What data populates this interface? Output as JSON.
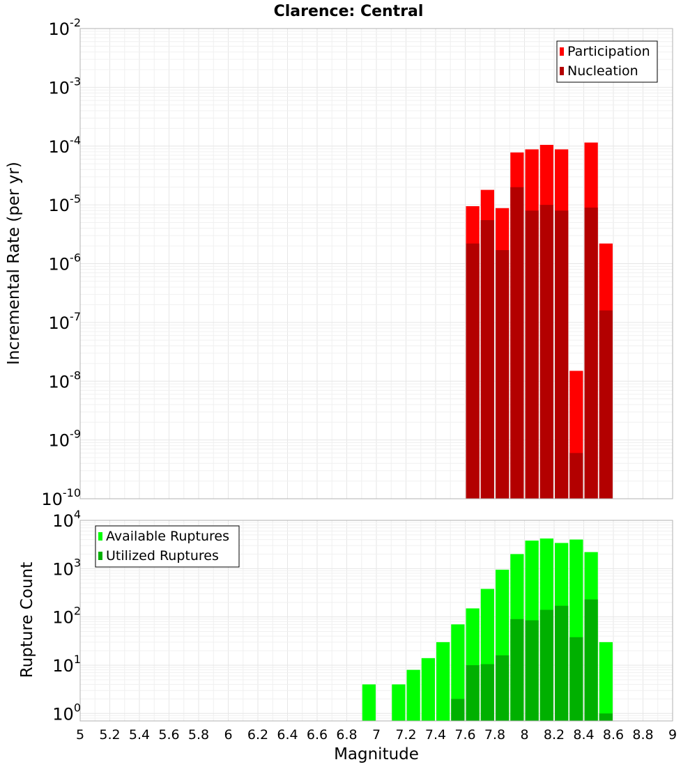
{
  "chart_data": [
    {
      "type": "bar",
      "title": "Clarence: Central",
      "xlabel": "",
      "ylabel": "Incremental Rate (per yr)",
      "yscale": "log",
      "ylim": [
        1e-10,
        0.01
      ],
      "xlim": [
        5,
        9
      ],
      "legend_position": "top-right",
      "overlay": true,
      "series": [
        {
          "name": "Participation",
          "color": "#ff0000",
          "x": [
            7.65,
            7.75,
            7.85,
            7.95,
            8.05,
            8.15,
            8.25,
            8.35,
            8.45,
            8.55
          ],
          "values": [
            9.5e-06,
            1.8e-05,
            8.8e-06,
            7.8e-05,
            8.8e-05,
            0.000105,
            8.8e-05,
            1.5e-08,
            0.000115,
            2.2e-06
          ]
        },
        {
          "name": "Nucleation",
          "color": "#b30000",
          "x": [
            7.65,
            7.75,
            7.85,
            7.95,
            8.05,
            8.15,
            8.25,
            8.35,
            8.45,
            8.55
          ],
          "values": [
            2.2e-06,
            5.5e-06,
            1.7e-06,
            2e-05,
            8e-06,
            1e-05,
            8e-06,
            6e-10,
            9e-06,
            1.6e-07
          ]
        }
      ]
    },
    {
      "type": "bar",
      "title": "",
      "xlabel": "Magnitude",
      "ylabel": "Rupture Count",
      "yscale": "log",
      "ylim": [
        0.7,
        10000
      ],
      "xlim": [
        5,
        9
      ],
      "xticks": [
        "5",
        "5.2",
        "5.4",
        "5.6",
        "5.8",
        "6",
        "6.2",
        "6.4",
        "6.6",
        "6.8",
        "7",
        "7.2",
        "7.4",
        "7.6",
        "7.8",
        "8",
        "8.2",
        "8.4",
        "8.6",
        "8.8",
        "9"
      ],
      "legend_position": "top-left",
      "overlay": true,
      "series": [
        {
          "name": "Available Ruptures",
          "color": "#00ff00",
          "x": [
            6.95,
            7.15,
            7.25,
            7.35,
            7.45,
            7.55,
            7.65,
            7.75,
            7.85,
            7.95,
            8.05,
            8.15,
            8.25,
            8.35,
            8.45,
            8.55
          ],
          "values": [
            4,
            4,
            8,
            14,
            30,
            70,
            150,
            380,
            950,
            2000,
            3800,
            4200,
            3400,
            4000,
            2200,
            30
          ]
        },
        {
          "name": "Utilized Ruptures",
          "color": "#00b000",
          "x": [
            7.55,
            7.65,
            7.75,
            7.85,
            7.95,
            8.05,
            8.15,
            8.25,
            8.35,
            8.45,
            8.55
          ],
          "values": [
            2,
            10,
            10.5,
            16,
            90,
            85,
            140,
            170,
            38,
            230,
            1
          ]
        }
      ]
    }
  ],
  "top_yticks": [
    {
      "base": "10",
      "exp": "-2"
    },
    {
      "base": "10",
      "exp": "-3"
    },
    {
      "base": "10",
      "exp": "-4"
    },
    {
      "base": "10",
      "exp": "-5"
    },
    {
      "base": "10",
      "exp": "-6"
    },
    {
      "base": "10",
      "exp": "-7"
    },
    {
      "base": "10",
      "exp": "-8"
    },
    {
      "base": "10",
      "exp": "-9"
    },
    {
      "base": "10",
      "exp": "-10"
    }
  ],
  "bottom_yticks": [
    {
      "base": "10",
      "exp": "4"
    },
    {
      "base": "10",
      "exp": "3"
    },
    {
      "base": "10",
      "exp": "2"
    },
    {
      "base": "10",
      "exp": "1"
    },
    {
      "base": "10",
      "exp": "0"
    }
  ]
}
